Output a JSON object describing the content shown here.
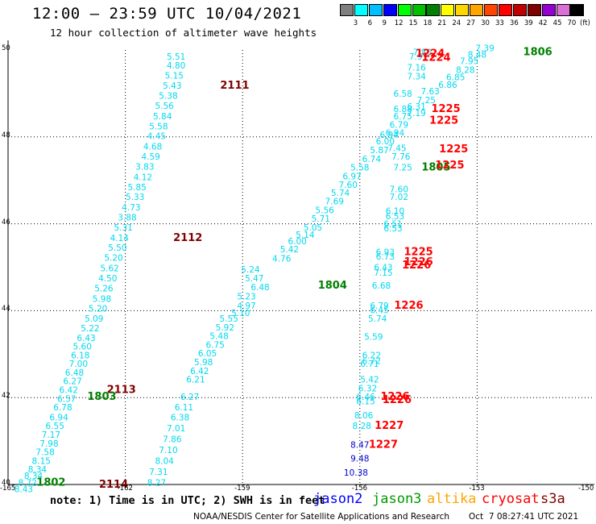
{
  "header": {
    "title": "12:00 – 23:59 UTC 10/04/2021",
    "subtitle": "12 hour collection of altimeter wave heights"
  },
  "legend": {
    "labels": [
      "3",
      "6",
      "9",
      "12",
      "15",
      "18",
      "21",
      "24",
      "27",
      "30",
      "33",
      "36",
      "39",
      "42",
      "45",
      "70"
    ],
    "unit": "(ft)",
    "colors": [
      "#7f7f7f",
      "#00ffff",
      "#00bfff",
      "#0000ff",
      "#00ff00",
      "#00c000",
      "#008000",
      "#ffff00",
      "#ffd700",
      "#ffa500",
      "#ff4500",
      "#ff0000",
      "#c00000",
      "#800000",
      "#9400d3",
      "#da70d6",
      "#000000"
    ]
  },
  "axes": {
    "x_ticks": [
      "-165",
      "-162",
      "-159",
      "-156",
      "-153",
      "-150"
    ],
    "y_ticks": [
      "50",
      "48",
      "46",
      "44",
      "42",
      "40"
    ]
  },
  "colors": {
    "swh": "#00d8f0",
    "swh_dark": "#00aacc",
    "blue_value": "#0000cc",
    "time_dark_red": "#800000",
    "time_red": "#ff0000",
    "time_green": "#008000"
  },
  "map_data": {
    "lon_range": [
      -165,
      -150
    ],
    "lat_range": [
      40,
      50
    ],
    "swh_points": [
      {
        "v": "5.51",
        "lon": -160.7,
        "lat": 49.85
      },
      {
        "v": "4.80",
        "lon": -160.7,
        "lat": 49.65
      },
      {
        "v": "5.15",
        "lon": -160.75,
        "lat": 49.42
      },
      {
        "v": "5.43",
        "lon": -160.8,
        "lat": 49.18
      },
      {
        "v": "5.38",
        "lon": -160.9,
        "lat": 48.95
      },
      {
        "v": "5.56",
        "lon": -161.0,
        "lat": 48.72
      },
      {
        "v": "5.84",
        "lon": -161.05,
        "lat": 48.48
      },
      {
        "v": "5.58",
        "lon": -161.15,
        "lat": 48.25
      },
      {
        "v": "4.45",
        "lon": -161.2,
        "lat": 48.02
      },
      {
        "v": "4.68",
        "lon": -161.3,
        "lat": 47.78
      },
      {
        "v": "4.59",
        "lon": -161.35,
        "lat": 47.55
      },
      {
        "v": "3.83",
        "lon": -161.5,
        "lat": 47.32
      },
      {
        "v": "4.12",
        "lon": -161.55,
        "lat": 47.08
      },
      {
        "v": "5.85",
        "lon": -161.7,
        "lat": 46.85
      },
      {
        "v": "5.33",
        "lon": -161.75,
        "lat": 46.62
      },
      {
        "v": "4.73",
        "lon": -161.85,
        "lat": 46.38
      },
      {
        "v": "3.88",
        "lon": -161.95,
        "lat": 46.15
      },
      {
        "v": "5.31",
        "lon": -162.05,
        "lat": 45.92
      },
      {
        "v": "4.14",
        "lon": -162.15,
        "lat": 45.68
      },
      {
        "v": "5.50",
        "lon": -162.2,
        "lat": 45.45
      },
      {
        "v": "5.20",
        "lon": -162.3,
        "lat": 45.22
      },
      {
        "v": "5.62",
        "lon": -162.4,
        "lat": 44.98
      },
      {
        "v": "4.50",
        "lon": -162.45,
        "lat": 44.75
      },
      {
        "v": "5.26",
        "lon": -162.55,
        "lat": 44.52
      },
      {
        "v": "5.98",
        "lon": -162.6,
        "lat": 44.28
      },
      {
        "v": "5.20",
        "lon": -162.7,
        "lat": 44.05
      },
      {
        "v": "5.09",
        "lon": -162.8,
        "lat": 43.82
      },
      {
        "v": "5.22",
        "lon": -162.9,
        "lat": 43.6
      },
      {
        "v": "6.43",
        "lon": -163.0,
        "lat": 43.38
      },
      {
        "v": "5.60",
        "lon": -163.1,
        "lat": 43.18
      },
      {
        "v": "6.18",
        "lon": -163.15,
        "lat": 42.98
      },
      {
        "v": "7.00",
        "lon": -163.2,
        "lat": 42.78
      },
      {
        "v": "6.48",
        "lon": -163.3,
        "lat": 42.58
      },
      {
        "v": "6.27",
        "lon": -163.35,
        "lat": 42.38
      },
      {
        "v": "6.42",
        "lon": -163.45,
        "lat": 42.18
      },
      {
        "v": "6.57",
        "lon": -163.5,
        "lat": 41.98
      },
      {
        "v": "6.78",
        "lon": -163.6,
        "lat": 41.78
      },
      {
        "v": "6.94",
        "lon": -163.7,
        "lat": 41.55
      },
      {
        "v": "6.55",
        "lon": -163.8,
        "lat": 41.35
      },
      {
        "v": "7.17",
        "lon": -163.9,
        "lat": 41.15
      },
      {
        "v": "7.98",
        "lon": -163.95,
        "lat": 40.95
      },
      {
        "v": "7.58",
        "lon": -164.05,
        "lat": 40.75
      },
      {
        "v": "8.15",
        "lon": -164.15,
        "lat": 40.55
      },
      {
        "v": "8.34",
        "lon": -164.25,
        "lat": 40.35
      },
      {
        "v": "8.34",
        "lon": -164.35,
        "lat": 40.2
      },
      {
        "v": "8.72",
        "lon": -164.5,
        "lat": 40.05
      },
      {
        "v": "8.43",
        "lon": -164.6,
        "lat": 39.9
      },
      {
        "v": "5.24",
        "lon": -158.8,
        "lat": 44.95
      },
      {
        "v": "5.47",
        "lon": -158.7,
        "lat": 44.75
      },
      {
        "v": "6.48",
        "lon": -158.55,
        "lat": 44.55
      },
      {
        "v": "5.23",
        "lon": -158.9,
        "lat": 44.33
      },
      {
        "v": "4.97",
        "lon": -158.9,
        "lat": 44.12
      },
      {
        "v": "5.10",
        "lon": -159.05,
        "lat": 43.95
      },
      {
        "v": "5.55",
        "lon": -159.35,
        "lat": 43.82
      },
      {
        "v": "5.92",
        "lon": -159.45,
        "lat": 43.62
      },
      {
        "v": "5.48",
        "lon": -159.6,
        "lat": 43.42
      },
      {
        "v": "6.75",
        "lon": -159.7,
        "lat": 43.22
      },
      {
        "v": "6.05",
        "lon": -159.9,
        "lat": 43.02
      },
      {
        "v": "5.98",
        "lon": -160.0,
        "lat": 42.82
      },
      {
        "v": "6.42",
        "lon": -160.1,
        "lat": 42.62
      },
      {
        "v": "6.21",
        "lon": -160.2,
        "lat": 42.42
      },
      {
        "v": "6.27",
        "lon": -160.35,
        "lat": 42.02
      },
      {
        "v": "6.11",
        "lon": -160.5,
        "lat": 41.78
      },
      {
        "v": "6.38",
        "lon": -160.6,
        "lat": 41.55
      },
      {
        "v": "7.01",
        "lon": -160.7,
        "lat": 41.3
      },
      {
        "v": "7.86",
        "lon": -160.8,
        "lat": 41.05
      },
      {
        "v": "7.10",
        "lon": -160.9,
        "lat": 40.8
      },
      {
        "v": "8.04",
        "lon": -161.0,
        "lat": 40.55
      },
      {
        "v": "7.31",
        "lon": -161.15,
        "lat": 40.3
      },
      {
        "v": "8.27",
        "lon": -161.2,
        "lat": 40.05
      },
      {
        "v": "5.14",
        "lon": -157.4,
        "lat": 45.75
      },
      {
        "v": "5.05",
        "lon": -157.2,
        "lat": 45.92
      },
      {
        "v": "5.71",
        "lon": -157.0,
        "lat": 46.12
      },
      {
        "v": "5.56",
        "lon": -156.9,
        "lat": 46.32
      },
      {
        "v": "7.69",
        "lon": -156.65,
        "lat": 46.52
      },
      {
        "v": "5.74",
        "lon": -156.5,
        "lat": 46.72
      },
      {
        "v": "7.60",
        "lon": -156.3,
        "lat": 46.9
      },
      {
        "v": "6.97",
        "lon": -156.2,
        "lat": 47.1
      },
      {
        "v": "5.58",
        "lon": -156.0,
        "lat": 47.3
      },
      {
        "v": "6.74",
        "lon": -155.7,
        "lat": 47.5
      },
      {
        "v": "5.87",
        "lon": -155.5,
        "lat": 47.7
      },
      {
        "v": "6.00",
        "lon": -155.35,
        "lat": 47.9
      },
      {
        "v": "6.94",
        "lon": -155.1,
        "lat": 48.1
      },
      {
        "v": "6.79",
        "lon": -155.0,
        "lat": 48.28
      },
      {
        "v": "6.75",
        "lon": -154.9,
        "lat": 48.48
      },
      {
        "v": "6.88",
        "lon": -154.9,
        "lat": 48.65
      },
      {
        "v": "6.58",
        "lon": -154.9,
        "lat": 49.0
      },
      {
        "v": "7.34",
        "lon": -154.55,
        "lat": 49.4
      },
      {
        "v": "7.16",
        "lon": -154.55,
        "lat": 49.6
      },
      {
        "v": "7.91",
        "lon": -154.5,
        "lat": 49.85
      },
      {
        "v": "7.80",
        "lon": -154.4,
        "lat": 49.95
      },
      {
        "v": "6.00",
        "lon": -157.6,
        "lat": 45.6
      },
      {
        "v": "5.42",
        "lon": -157.8,
        "lat": 45.42
      },
      {
        "v": "4.76",
        "lon": -158.0,
        "lat": 45.2
      },
      {
        "v": "7.25",
        "lon": -154.9,
        "lat": 47.3
      },
      {
        "v": "7.76",
        "lon": -154.95,
        "lat": 47.55
      },
      {
        "v": "7.45",
        "lon": -155.05,
        "lat": 47.75
      },
      {
        "v": "6.94",
        "lon": -155.25,
        "lat": 48.05
      },
      {
        "v": "7.19",
        "lon": -154.55,
        "lat": 48.55
      },
      {
        "v": "6.31",
        "lon": -154.55,
        "lat": 48.7
      },
      {
        "v": "7.25",
        "lon": -154.3,
        "lat": 48.85
      },
      {
        "v": "7.63",
        "lon": -154.2,
        "lat": 49.05
      },
      {
        "v": "6.86",
        "lon": -153.75,
        "lat": 49.2
      },
      {
        "v": "6.85",
        "lon": -153.55,
        "lat": 49.38
      },
      {
        "v": "8.28",
        "lon": -153.3,
        "lat": 49.55
      },
      {
        "v": "7.95",
        "lon": -153.2,
        "lat": 49.75
      },
      {
        "v": "8.48",
        "lon": -153.0,
        "lat": 49.9
      },
      {
        "v": "7.39",
        "lon": -152.8,
        "lat": 50.05
      },
      {
        "v": "7.60",
        "lon": -155.0,
        "lat": 46.8
      },
      {
        "v": "7.02",
        "lon": -155.0,
        "lat": 46.62
      },
      {
        "v": "6.10",
        "lon": -155.1,
        "lat": 46.3
      },
      {
        "v": "6.53",
        "lon": -155.1,
        "lat": 46.18
      },
      {
        "v": "6.51",
        "lon": -155.15,
        "lat": 46.0
      },
      {
        "v": "6.53",
        "lon": -155.15,
        "lat": 45.9
      },
      {
        "v": "6.93",
        "lon": -155.35,
        "lat": 45.35
      },
      {
        "v": "6.73",
        "lon": -155.35,
        "lat": 45.25
      },
      {
        "v": "6.43",
        "lon": -155.4,
        "lat": 45.0
      },
      {
        "v": "7.15",
        "lon": -155.4,
        "lat": 44.88
      },
      {
        "v": "6.68",
        "lon": -155.45,
        "lat": 44.58
      },
      {
        "v": "6.79",
        "lon": -155.5,
        "lat": 44.12
      },
      {
        "v": "6.45",
        "lon": -155.5,
        "lat": 44.02
      },
      {
        "v": "5.74",
        "lon": -155.55,
        "lat": 43.82
      },
      {
        "v": "5.59",
        "lon": -155.65,
        "lat": 43.4
      },
      {
        "v": "6.22",
        "lon": -155.7,
        "lat": 42.98
      },
      {
        "v": "6.72",
        "lon": -155.7,
        "lat": 42.85
      },
      {
        "v": "6.71",
        "lon": -155.75,
        "lat": 42.78
      },
      {
        "v": "5.42",
        "lon": -155.75,
        "lat": 42.42
      },
      {
        "v": "6.32",
        "lon": -155.8,
        "lat": 42.22
      },
      {
        "v": "6.46",
        "lon": -155.85,
        "lat": 42.02
      },
      {
        "v": "6.15",
        "lon": -155.85,
        "lat": 41.92
      },
      {
        "v": "8.06",
        "lon": -155.9,
        "lat": 41.6
      },
      {
        "v": "8.28",
        "lon": -155.95,
        "lat": 41.35
      }
    ],
    "swh_blue_points": [
      {
        "v": "8.47",
        "lon": -156.0,
        "lat": 40.92
      },
      {
        "v": "9.48",
        "lon": -156.0,
        "lat": 40.6
      },
      {
        "v": "10.38",
        "lon": -156.1,
        "lat": 40.28
      }
    ],
    "time_labels": [
      {
        "t": "2111",
        "lon": -159.2,
        "lat": 49.18,
        "c": "time_dark_red"
      },
      {
        "t": "2112",
        "lon": -160.4,
        "lat": 45.68,
        "c": "time_dark_red"
      },
      {
        "t": "2113",
        "lon": -162.1,
        "lat": 42.18,
        "c": "time_dark_red"
      },
      {
        "t": "2114",
        "lon": -162.3,
        "lat": 40.0,
        "c": "time_dark_red"
      },
      {
        "t": "1806",
        "lon": -151.45,
        "lat": 49.95,
        "c": "time_green"
      },
      {
        "t": "1805",
        "lon": -154.05,
        "lat": 47.3,
        "c": "time_green"
      },
      {
        "t": "1804",
        "lon": -156.7,
        "lat": 44.58,
        "c": "time_green"
      },
      {
        "t": "1803",
        "lon": -162.6,
        "lat": 42.02,
        "c": "time_green"
      },
      {
        "t": "1802",
        "lon": -163.9,
        "lat": 40.05,
        "c": "time_green"
      },
      {
        "t": "1224",
        "lon": -154.2,
        "lat": 49.92,
        "c": "time_red"
      },
      {
        "t": "1224",
        "lon": -154.05,
        "lat": 49.82,
        "c": "time_red"
      },
      {
        "t": "1225",
        "lon": -153.8,
        "lat": 48.65,
        "c": "time_red"
      },
      {
        "t": "1225",
        "lon": -153.85,
        "lat": 48.38,
        "c": "time_red"
      },
      {
        "t": "1225",
        "lon": -153.6,
        "lat": 47.72,
        "c": "time_red"
      },
      {
        "t": "1225",
        "lon": -153.7,
        "lat": 47.35,
        "c": "time_red"
      },
      {
        "t": "1225",
        "lon": -154.5,
        "lat": 45.35,
        "c": "time_red"
      },
      {
        "t": "1226",
        "lon": -154.5,
        "lat": 45.12,
        "c": "time_red"
      },
      {
        "t": "1226",
        "lon": -154.55,
        "lat": 45.05,
        "c": "time_red"
      },
      {
        "t": "1226",
        "lon": -154.75,
        "lat": 44.12,
        "c": "time_red"
      },
      {
        "t": "1226",
        "lon": -155.1,
        "lat": 42.02,
        "c": "time_red"
      },
      {
        "t": "1226",
        "lon": -155.05,
        "lat": 41.95,
        "c": "time_red"
      },
      {
        "t": "1227",
        "lon": -155.25,
        "lat": 41.35,
        "c": "time_red"
      },
      {
        "t": "1227",
        "lon": -155.4,
        "lat": 40.92,
        "c": "time_red"
      }
    ]
  },
  "footer": {
    "note": "note: 1) Time is in UTC; 2) SWH is in feet",
    "missions": [
      {
        "label": "jason2",
        "color": "#0000ff"
      },
      {
        "label": "jason3",
        "color": "#009900"
      },
      {
        "label": "altika",
        "color": "#ffa500"
      },
      {
        "label": "cryosat",
        "color": "#ff0000"
      },
      {
        "label": "s3a",
        "color": "#800000"
      }
    ],
    "credit": "NOAA/NESDIS Center for Satellite Applications and Research",
    "timestamp": "Oct  7 08:27:41 UTC 2021"
  }
}
